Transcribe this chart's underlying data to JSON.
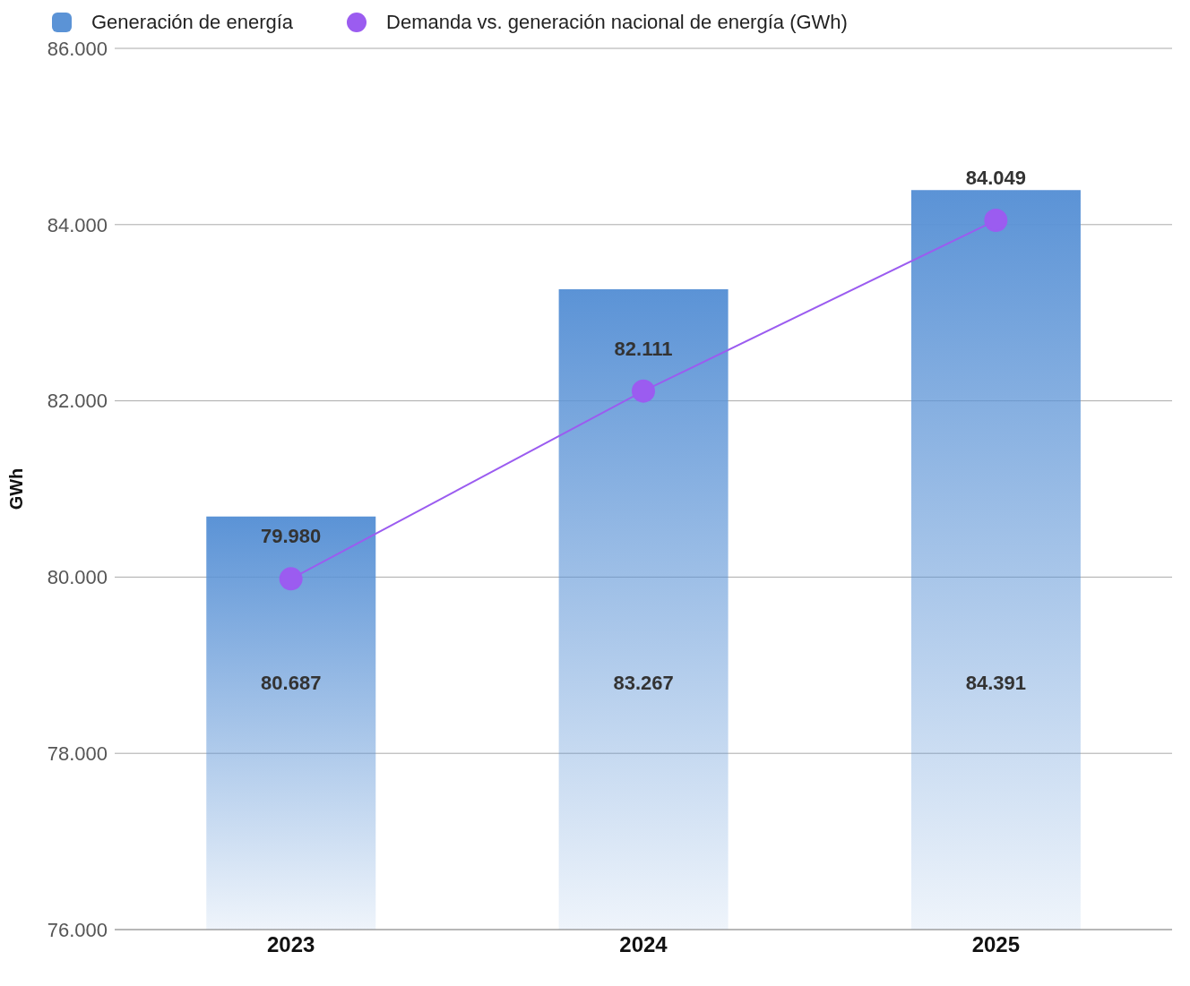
{
  "chart_data": {
    "type": "bar",
    "categories": [
      "2023",
      "2024",
      "2025"
    ],
    "ylabel": "GWh",
    "ylim": [
      76000,
      86000
    ],
    "yticks": [
      {
        "value": 76000,
        "label": "76.000"
      },
      {
        "value": 78000,
        "label": "78.000"
      },
      {
        "value": 80000,
        "label": "80.000"
      },
      {
        "value": 82000,
        "label": "82.000"
      },
      {
        "value": 84000,
        "label": "84.000"
      },
      {
        "value": 86000,
        "label": "86.000"
      }
    ],
    "series": [
      {
        "name": "Generación de energía",
        "color": "#5b93d6",
        "values": [
          80687,
          83267,
          84391
        ],
        "value_labels": [
          "80.687",
          "83.267",
          "84.391"
        ]
      },
      {
        "name": "Demanda vs. generación nacional de energía (GWh)",
        "type": "line",
        "color": "#9b5cf0",
        "values": [
          79980,
          82111,
          84049
        ],
        "value_labels": [
          "79.980",
          "82.111",
          "84.049"
        ]
      }
    ],
    "grid": "y",
    "legend": "top left",
    "marker": "circle",
    "line_style": "solid"
  }
}
